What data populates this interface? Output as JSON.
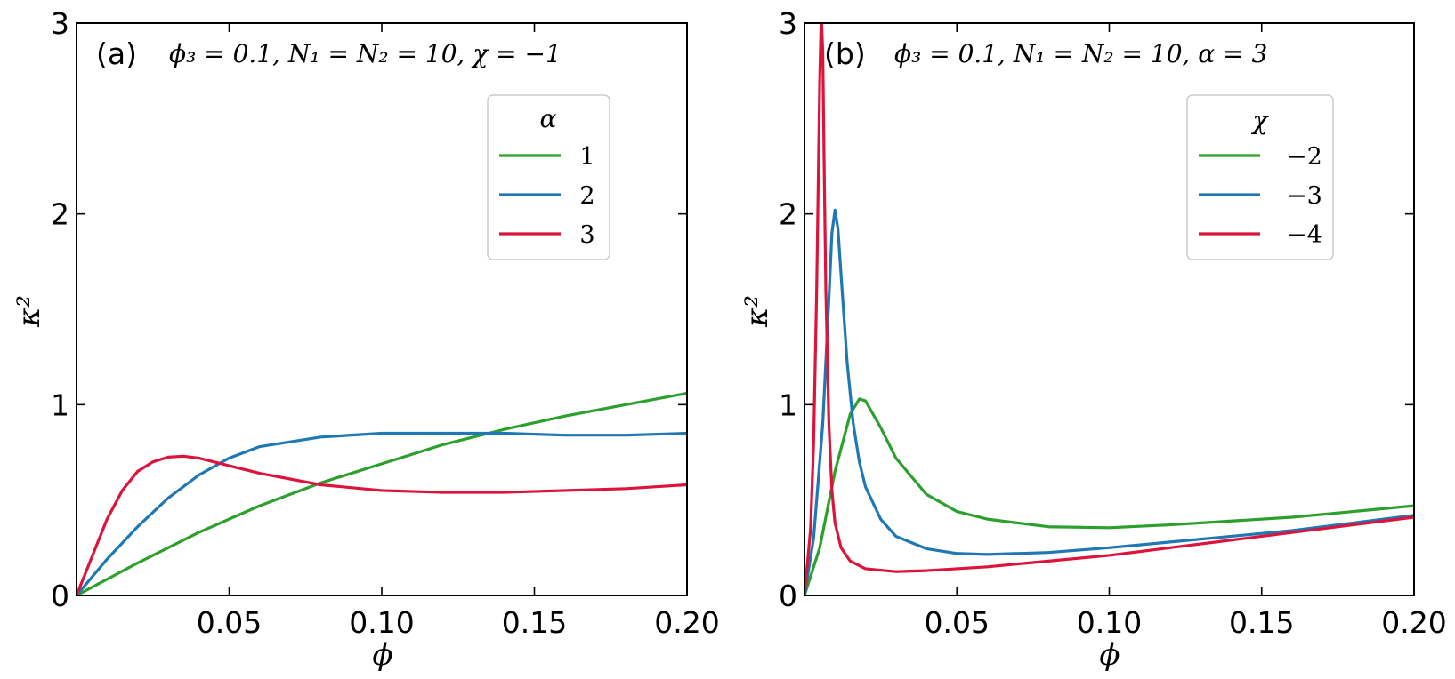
{
  "colors": {
    "green": "#2ca02c",
    "blue": "#1f77b4",
    "red": "#dc143c"
  },
  "chart_data": [
    {
      "type": "line",
      "panel_label": "(a)",
      "params": "ϕ₃ = 0.1,  N₁ = N₂ = 10,  χ = −1",
      "xlabel": "ϕ",
      "ylabel": "κ²",
      "xlim": [
        0,
        0.2
      ],
      "ylim": [
        0,
        3
      ],
      "xticks": [
        "0.05",
        "0.10",
        "0.15",
        "0.20"
      ],
      "xtick_values": [
        0.05,
        0.1,
        0.15,
        0.2
      ],
      "yticks": [
        "0",
        "1",
        "2",
        "3"
      ],
      "ytick_values": [
        0,
        1,
        2,
        3
      ],
      "legend_title": "α",
      "legend_position": "top-right",
      "series": [
        {
          "name": "1",
          "color": "#2ca02c",
          "x": [
            0.0,
            0.02,
            0.04,
            0.06,
            0.08,
            0.1,
            0.12,
            0.14,
            0.16,
            0.18,
            0.2
          ],
          "y": [
            0.0,
            0.17,
            0.33,
            0.47,
            0.59,
            0.69,
            0.79,
            0.87,
            0.94,
            1.0,
            1.06
          ]
        },
        {
          "name": "2",
          "color": "#1f77b4",
          "x": [
            0.0,
            0.01,
            0.02,
            0.03,
            0.04,
            0.05,
            0.06,
            0.08,
            0.1,
            0.12,
            0.14,
            0.16,
            0.18,
            0.2
          ],
          "y": [
            0.0,
            0.19,
            0.36,
            0.51,
            0.63,
            0.72,
            0.78,
            0.83,
            0.85,
            0.85,
            0.85,
            0.84,
            0.84,
            0.85
          ]
        },
        {
          "name": "3",
          "color": "#dc143c",
          "x": [
            0.0,
            0.005,
            0.01,
            0.015,
            0.02,
            0.025,
            0.03,
            0.035,
            0.04,
            0.05,
            0.06,
            0.08,
            0.1,
            0.12,
            0.14,
            0.16,
            0.18,
            0.2
          ],
          "y": [
            0.0,
            0.2,
            0.4,
            0.55,
            0.65,
            0.7,
            0.725,
            0.73,
            0.72,
            0.68,
            0.64,
            0.58,
            0.55,
            0.54,
            0.54,
            0.55,
            0.56,
            0.58
          ]
        }
      ]
    },
    {
      "type": "line",
      "panel_label": "(b)",
      "params": "ϕ₃ = 0.1,  N₁ = N₂ = 10,  α = 3",
      "xlabel": "ϕ",
      "ylabel": "κ²",
      "xlim": [
        0,
        0.2
      ],
      "ylim": [
        0,
        3
      ],
      "xticks": [
        "0.05",
        "0.10",
        "0.15",
        "0.20"
      ],
      "xtick_values": [
        0.05,
        0.1,
        0.15,
        0.2
      ],
      "yticks": [
        "0",
        "1",
        "2",
        "3"
      ],
      "ytick_values": [
        0,
        1,
        2,
        3
      ],
      "legend_title": "χ",
      "legend_position": "top-right",
      "series": [
        {
          "name": "−2",
          "color": "#2ca02c",
          "x": [
            0.0,
            0.005,
            0.01,
            0.015,
            0.018,
            0.02,
            0.025,
            0.03,
            0.04,
            0.05,
            0.06,
            0.08,
            0.1,
            0.12,
            0.14,
            0.16,
            0.18,
            0.2
          ],
          "y": [
            0.0,
            0.25,
            0.65,
            0.95,
            1.03,
            1.02,
            0.88,
            0.72,
            0.53,
            0.44,
            0.4,
            0.36,
            0.355,
            0.37,
            0.39,
            0.41,
            0.44,
            0.47
          ]
        },
        {
          "name": "−3",
          "color": "#1f77b4",
          "x": [
            0.0,
            0.003,
            0.006,
            0.008,
            0.009,
            0.01,
            0.011,
            0.012,
            0.014,
            0.016,
            0.018,
            0.02,
            0.025,
            0.03,
            0.04,
            0.05,
            0.06,
            0.08,
            0.1,
            0.12,
            0.14,
            0.16,
            0.18,
            0.2
          ],
          "y": [
            0.0,
            0.3,
            0.9,
            1.55,
            1.9,
            2.02,
            1.92,
            1.68,
            1.22,
            0.9,
            0.7,
            0.57,
            0.4,
            0.31,
            0.245,
            0.22,
            0.215,
            0.225,
            0.25,
            0.28,
            0.31,
            0.34,
            0.38,
            0.42
          ]
        },
        {
          "name": "−4",
          "color": "#dc143c",
          "x": [
            0.0,
            0.002,
            0.003,
            0.004,
            0.005,
            0.0055,
            0.006,
            0.0065,
            0.007,
            0.008,
            0.009,
            0.01,
            0.012,
            0.015,
            0.02,
            0.03,
            0.04,
            0.06,
            0.08,
            0.1,
            0.12,
            0.14,
            0.16,
            0.18,
            0.2
          ],
          "y": [
            0.0,
            0.35,
            0.8,
            1.6,
            2.7,
            3.05,
            2.85,
            2.2,
            1.6,
            0.9,
            0.55,
            0.38,
            0.25,
            0.18,
            0.14,
            0.125,
            0.13,
            0.15,
            0.18,
            0.21,
            0.25,
            0.29,
            0.33,
            0.37,
            0.41
          ]
        }
      ]
    }
  ]
}
